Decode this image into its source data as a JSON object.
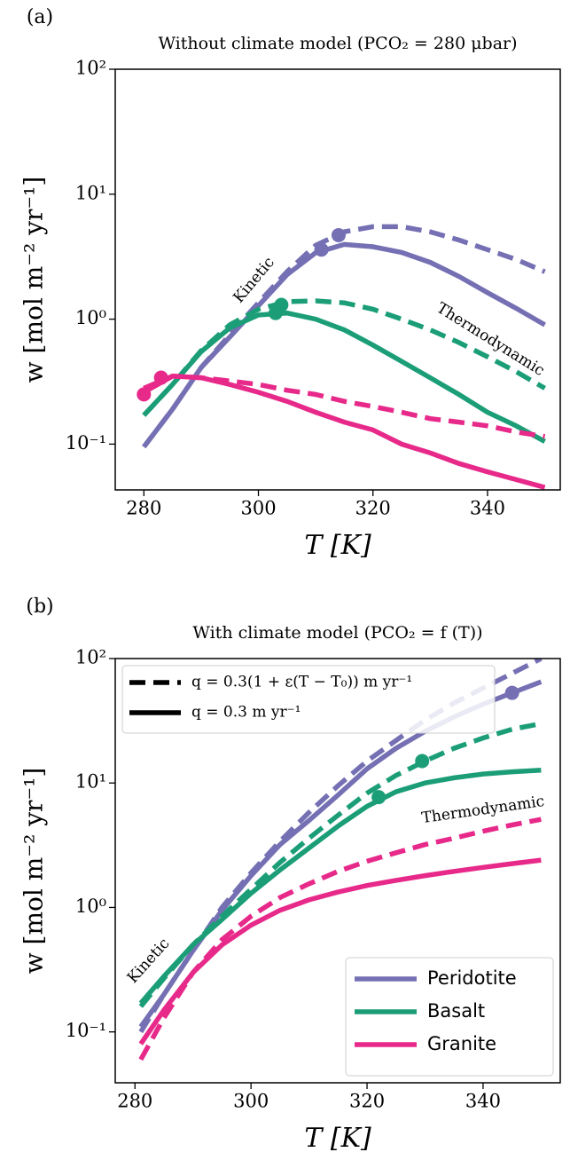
{
  "chart_data": [
    {
      "type": "line",
      "panel": "(a)",
      "title": "Without climate model (PCO₂ = 280 μbar)",
      "xlabel": "T [K]",
      "ylabel": "w [mol m⁻² yr⁻¹]",
      "log_y": true,
      "xlim": [
        275,
        352.7
      ],
      "ylim": [
        0.043,
        100
      ],
      "xticks": [
        280,
        300,
        320,
        340
      ],
      "yticks": [
        {
          "value": 0.1,
          "label": "10⁻¹"
        },
        {
          "value": 1,
          "label": "10⁰"
        },
        {
          "value": 10,
          "label": "10¹"
        },
        {
          "value": 100,
          "label": "10²"
        }
      ],
      "annotations": [
        "Kinetic",
        "Thermodynamic"
      ],
      "x": [
        280,
        285,
        290,
        295,
        300,
        305,
        310,
        315,
        320,
        325,
        330,
        335,
        340,
        345,
        350
      ],
      "series": [
        {
          "color": "#7570b3",
          "dashed": [
            0.095,
            0.19,
            0.41,
            0.75,
            1.35,
            2.4,
            3.9,
            5.0,
            5.5,
            5.5,
            5.0,
            4.3,
            3.6,
            3.0,
            2.4
          ],
          "solid": [
            0.095,
            0.19,
            0.41,
            0.72,
            1.28,
            2.27,
            3.4,
            3.96,
            3.8,
            3.42,
            2.85,
            2.2,
            1.63,
            1.22,
            0.9
          ],
          "markers": [
            {
              "style": "solid",
              "x": 311,
              "y": 3.6
            },
            {
              "style": "dashed",
              "x": 314,
              "y": 4.7
            }
          ]
        },
        {
          "color": "#1b9e77",
          "dashed": [
            0.17,
            0.3,
            0.56,
            0.9,
            1.2,
            1.38,
            1.4,
            1.35,
            1.2,
            1.0,
            0.82,
            0.65,
            0.5,
            0.38,
            0.28
          ],
          "solid": [
            0.17,
            0.3,
            0.55,
            0.85,
            1.08,
            1.12,
            1.0,
            0.82,
            0.62,
            0.46,
            0.34,
            0.25,
            0.18,
            0.14,
            0.105
          ],
          "markers": [
            {
              "style": "solid",
              "x": 303,
              "y": 1.12
            },
            {
              "style": "dashed",
              "x": 304,
              "y": 1.3
            }
          ]
        },
        {
          "color": "#e7298a",
          "dashed": [
            0.28,
            0.35,
            0.34,
            0.32,
            0.3,
            0.27,
            0.25,
            0.22,
            0.2,
            0.18,
            0.16,
            0.15,
            0.14,
            0.125,
            0.115
          ],
          "solid": [
            0.26,
            0.35,
            0.34,
            0.3,
            0.26,
            0.22,
            0.18,
            0.15,
            0.13,
            0.1,
            0.085,
            0.07,
            0.06,
            0.052,
            0.045
          ],
          "markers": [
            {
              "style": "solid",
              "x": 280,
              "y": 0.25
            },
            {
              "style": "dashed",
              "x": 283,
              "y": 0.34
            }
          ]
        }
      ]
    },
    {
      "type": "line",
      "panel": "(b)",
      "title": "With climate model (PCO₂ = f (T))",
      "xlabel": "T [K]",
      "ylabel": "w [mol m⁻² yr⁻¹]",
      "log_y": true,
      "xlim": [
        276.6,
        353.3
      ],
      "ylim": [
        0.039,
        100
      ],
      "xticks": [
        280,
        300,
        320,
        340
      ],
      "yticks": [
        {
          "value": 0.1,
          "label": "10⁻¹"
        },
        {
          "value": 1,
          "label": "10⁰"
        },
        {
          "value": 10,
          "label": "10¹"
        },
        {
          "value": 100,
          "label": "10²"
        }
      ],
      "annotations": [
        "Kinetic",
        "Thermodynamic"
      ],
      "legend": "lower right",
      "style_legend": "upper left",
      "styles": [
        {
          "label": "q = 0.3(1 + ε(T − T₀)) m yr⁻¹",
          "style": "dashed"
        },
        {
          "label": "q = 0.3 m yr⁻¹",
          "style": "solid"
        }
      ],
      "x": [
        281,
        285,
        290,
        295,
        300,
        305,
        310,
        315,
        320,
        325,
        330,
        335,
        340,
        345,
        350
      ],
      "series": [
        {
          "name": "Peridotite",
          "color": "#7570b3",
          "dashed": [
            0.1,
            0.2,
            0.45,
            1.0,
            1.9,
            3.4,
            5.8,
            9.5,
            15,
            22,
            32,
            44,
            58,
            76,
            100
          ],
          "solid": [
            0.11,
            0.2,
            0.45,
            0.95,
            1.8,
            3.2,
            5.0,
            8.0,
            13,
            19,
            26,
            34,
            43,
            53,
            65
          ],
          "markers": [
            {
              "style": "solid",
              "x": 345,
              "y": 53
            }
          ]
        },
        {
          "name": "Basalt",
          "color": "#1b9e77",
          "dashed": [
            0.16,
            0.27,
            0.5,
            0.85,
            1.4,
            2.3,
            3.6,
            5.5,
            8.3,
            11.5,
            15,
            19,
            23,
            27,
            30
          ],
          "solid": [
            0.17,
            0.28,
            0.5,
            0.8,
            1.3,
            2.0,
            3.0,
            4.5,
            6.5,
            8.5,
            10,
            11,
            11.8,
            12.3,
            12.7
          ],
          "markers": [
            {
              "style": "dashed",
              "x": 329.5,
              "y": 15
            },
            {
              "style": "solid",
              "x": 322,
              "y": 7.7
            }
          ]
        },
        {
          "name": "Granite",
          "color": "#e7298a",
          "dashed": [
            0.06,
            0.13,
            0.3,
            0.55,
            0.85,
            1.2,
            1.55,
            1.95,
            2.35,
            2.75,
            3.2,
            3.6,
            4.1,
            4.6,
            5.1
          ],
          "solid": [
            0.08,
            0.15,
            0.3,
            0.5,
            0.72,
            0.95,
            1.15,
            1.33,
            1.5,
            1.65,
            1.8,
            1.95,
            2.1,
            2.25,
            2.4
          ],
          "markers": []
        }
      ]
    }
  ]
}
